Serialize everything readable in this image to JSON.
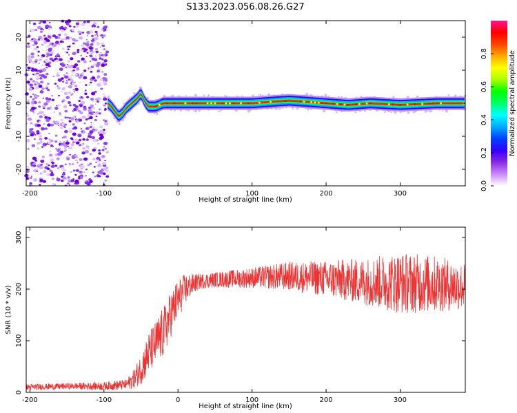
{
  "title": "S133.2023.056.08.26.G27",
  "chart_data": [
    {
      "type": "heatmap",
      "xlabel": "Height of straight line (km)",
      "ylabel": "Frequency (Hz)",
      "xlim": [
        -205,
        388
      ],
      "ylim": [
        -25,
        25
      ],
      "xticks": [
        -200,
        -100,
        0,
        100,
        200,
        300
      ],
      "yticks": [
        -20,
        -10,
        0,
        10,
        20
      ],
      "colorbar": {
        "label": "Normalized spectral amplitude",
        "range": [
          0.0,
          1.0
        ],
        "ticks": [
          0.0,
          0.2,
          0.4,
          0.6,
          0.8
        ],
        "colors": [
          "#ffffff",
          "#cc88ff",
          "#8a2be2",
          "#3300ff",
          "#0040ff",
          "#00aaff",
          "#00ffff",
          "#00ff66",
          "#00ff00",
          "#aaff00",
          "#ffff00",
          "#ffaa00",
          "#ff4400",
          "#ff0000",
          "#ff1493"
        ]
      },
      "noise_region_km": [
        -205,
        -95
      ],
      "ridge": {
        "x": [
          -95,
          -90,
          -85,
          -80,
          -75,
          -70,
          -65,
          -60,
          -55,
          -50,
          -45,
          -40,
          -35,
          -30,
          -25,
          -20,
          0,
          50,
          100,
          130,
          150,
          170,
          200,
          230,
          260,
          300,
          350,
          388
        ],
        "y": [
          0,
          -1,
          -2.5,
          -4,
          -3,
          -1.5,
          -0.5,
          0.5,
          1.5,
          3,
          0.5,
          -1,
          -1,
          -1,
          -0.5,
          0,
          0,
          0,
          0,
          0.5,
          0.8,
          0.5,
          0,
          -0.5,
          0,
          -0.5,
          0,
          0
        ]
      }
    },
    {
      "type": "line",
      "xlabel": "Height of straight line (km)",
      "ylabel": "SNR (10 * v/v)",
      "xlim": [
        -205,
        388
      ],
      "ylim": [
        0,
        320
      ],
      "xticks": [
        -200,
        -100,
        0,
        100,
        200,
        300
      ],
      "yticks": [
        0,
        100,
        200,
        300
      ],
      "color": "#ee3333",
      "envelope": {
        "x": [
          -205,
          -150,
          -100,
          -70,
          -60,
          -50,
          -40,
          -30,
          -20,
          -10,
          0,
          10,
          20,
          30,
          50,
          100,
          150,
          200,
          250,
          300,
          350,
          388
        ],
        "mean": [
          10,
          12,
          12,
          15,
          25,
          45,
          75,
          95,
          115,
          150,
          180,
          200,
          210,
          215,
          218,
          222,
          225,
          220,
          215,
          212,
          210,
          205
        ],
        "spread": [
          6,
          6,
          8,
          10,
          18,
          30,
          40,
          45,
          50,
          45,
          40,
          30,
          20,
          15,
          15,
          20,
          28,
          35,
          45,
          60,
          55,
          45
        ]
      }
    }
  ]
}
